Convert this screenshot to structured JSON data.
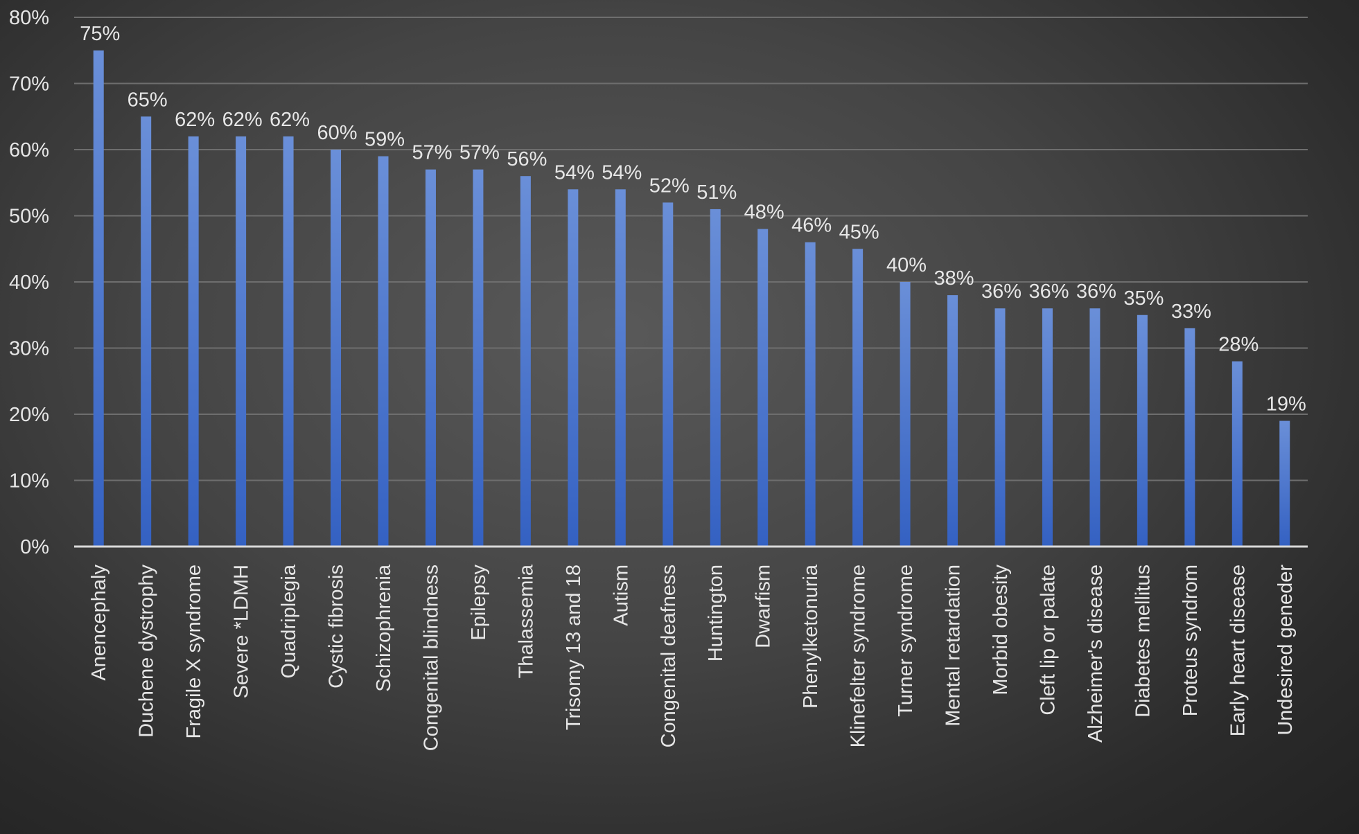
{
  "chart_data": {
    "type": "bar",
    "categories": [
      "Anencephaly",
      "Duchene dystrophy",
      "Fragile X syndrome",
      "Severe *LDMH",
      "Quadriplegia",
      "Cystic fibrosis",
      "Schizophrenia",
      "Congenital blindness",
      "Epilepsy",
      "Thalassemia",
      "Trisomy 13 and 18",
      "Autism",
      "Congenital deafness",
      "Huntington",
      "Dwarfism",
      "Phenylketonuria",
      "Klinefelter syndrome",
      "Turner syndrome",
      "Mental retardation",
      "Morbid obesity",
      "Cleft lip or palate",
      "Alzheimer's disease",
      "Diabetes mellitus",
      "Proteus syndrom",
      "Early heart disease",
      "Undesired geneder"
    ],
    "values": [
      75,
      65,
      62,
      62,
      62,
      60,
      59,
      57,
      57,
      56,
      54,
      54,
      52,
      51,
      48,
      46,
      45,
      40,
      38,
      36,
      36,
      36,
      35,
      33,
      28,
      19
    ],
    "data_labels": [
      "75%",
      "65%",
      "62%",
      "62%",
      "62%",
      "60%",
      "59%",
      "57%",
      "57%",
      "56%",
      "54%",
      "54%",
      "52%",
      "51%",
      "48%",
      "46%",
      "45%",
      "40%",
      "38%",
      "36%",
      "36%",
      "36%",
      "35%",
      "33%",
      "28%",
      "19%"
    ],
    "y_ticks": [
      "0%",
      "10%",
      "20%",
      "30%",
      "40%",
      "50%",
      "60%",
      "70%",
      "80%"
    ],
    "ylim": [
      0,
      80
    ],
    "grid": true,
    "bar_color": "#4472C4"
  }
}
